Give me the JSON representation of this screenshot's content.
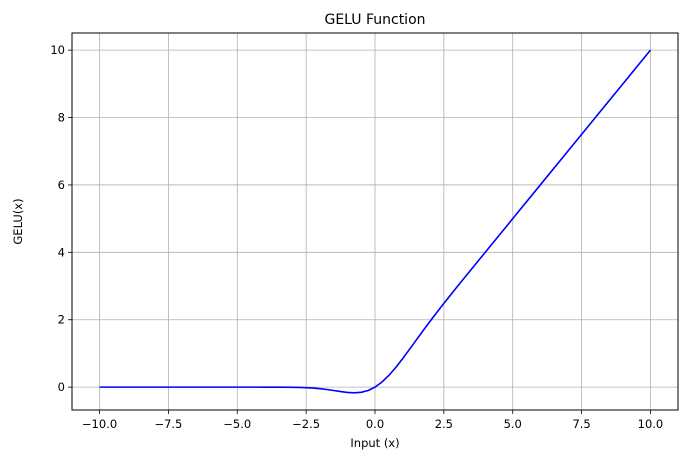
{
  "chart_data": {
    "type": "line",
    "title": "GELU Function",
    "xlabel": "Input (x)",
    "ylabel": "GELU(x)",
    "xlim": [
      -10.0,
      10.0
    ],
    "ylim": [
      -0.5,
      10.0
    ],
    "x_ticks": [
      -10.0,
      -7.5,
      -5.0,
      -2.5,
      0.0,
      2.5,
      5.0,
      7.5,
      10.0
    ],
    "x_tick_labels": [
      "−10.0",
      "−7.5",
      "−5.0",
      "−2.5",
      "0.0",
      "2.5",
      "5.0",
      "7.5",
      "10.0"
    ],
    "y_ticks": [
      0,
      2,
      4,
      6,
      8,
      10
    ],
    "y_tick_labels": [
      "0",
      "2",
      "4",
      "6",
      "8",
      "10"
    ],
    "grid": true,
    "series": [
      {
        "color": "#0000ff",
        "x": [
          -10,
          -9,
          -8,
          -7,
          -6,
          -5,
          -4,
          -3.5,
          -3,
          -2.75,
          -2.5,
          -2.25,
          -2,
          -1.75,
          -1.5,
          -1.25,
          -1,
          -0.75,
          -0.5,
          -0.25,
          0,
          0.25,
          0.5,
          0.75,
          1,
          1.25,
          1.5,
          1.75,
          2,
          2.25,
          2.5,
          2.75,
          3,
          3.5,
          4,
          5,
          6,
          7,
          8,
          9,
          10
        ],
        "y": [
          0,
          0,
          0,
          0,
          0,
          0,
          -0.0001,
          -0.0008,
          -0.004,
          -0.008,
          -0.0155,
          -0.0275,
          -0.0455,
          -0.0702,
          -0.1002,
          -0.132,
          -0.1587,
          -0.17,
          -0.1543,
          -0.1003,
          0,
          0.1497,
          0.3457,
          0.58,
          0.8413,
          1.118,
          1.3998,
          1.6798,
          1.9545,
          2.2225,
          2.4845,
          2.742,
          2.996,
          3.4992,
          3.9999,
          5.0,
          6.0,
          7.0,
          8.0,
          9.0,
          10.0
        ]
      }
    ]
  }
}
